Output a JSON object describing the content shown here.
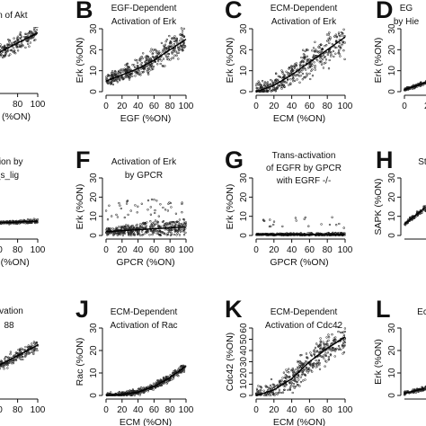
{
  "chart_data": [
    {
      "id": "A",
      "letter": "",
      "title": [
        "ion of Akt"
      ],
      "xlabel": "(%ON)",
      "ylabel": "",
      "type": "scatter",
      "xticks": [
        "",
        "80",
        "100"
      ],
      "yticks": [],
      "xlim": [
        0,
        100
      ],
      "ylim": [
        0,
        30
      ],
      "fit": {
        "x": [
          0,
          20,
          40,
          60,
          80,
          100
        ],
        "y": [
          3,
          8,
          13,
          18,
          23,
          28
        ]
      },
      "spread": 2.5
    },
    {
      "id": "B",
      "letter": "B",
      "title": [
        "EGF-Dependent",
        "Activation of Erk"
      ],
      "xlabel": "EGF (%ON)",
      "ylabel": "Erk (%ON)",
      "type": "scatter",
      "xticks": [
        "0",
        "20",
        "40",
        "60",
        "80",
        "100"
      ],
      "yticks": [
        "0",
        "10",
        "20",
        "30"
      ],
      "xlim": [
        0,
        100
      ],
      "ylim": [
        0,
        30
      ],
      "fit": {
        "x": [
          0,
          20,
          40,
          60,
          80,
          100
        ],
        "y": [
          5,
          8,
          11,
          15,
          20,
          25
        ]
      },
      "spread": 4
    },
    {
      "id": "C",
      "letter": "C",
      "title": [
        "ECM-Dependent",
        "Activation of Erk"
      ],
      "xlabel": "ECM (%ON)",
      "ylabel": "Erk (%ON)",
      "type": "scatter",
      "xticks": [
        "0",
        "20",
        "40",
        "60",
        "80",
        "100"
      ],
      "yticks": [
        "0",
        "10",
        "20",
        "30"
      ],
      "xlim": [
        0,
        100
      ],
      "ylim": [
        0,
        30
      ],
      "fit": {
        "x": [
          0,
          20,
          40,
          60,
          80,
          100
        ],
        "y": [
          0,
          3,
          8,
          14,
          20,
          26
        ]
      },
      "spread": 5
    },
    {
      "id": "D",
      "letter": "D",
      "title": [
        "EG",
        "by Hie"
      ],
      "xlabel": "",
      "ylabel": "Erk (%ON)",
      "type": "scatter",
      "xticks": [
        "0",
        "25"
      ],
      "yticks": [
        "0",
        "10",
        "20",
        "30"
      ],
      "xlim": [
        0,
        100
      ],
      "ylim": [
        0,
        30
      ],
      "fit": {
        "x": [
          0,
          20,
          40
        ],
        "y": [
          1,
          4,
          7
        ]
      },
      "spread": 1
    },
    {
      "id": "E",
      "letter": "",
      "title": [
        "ation by",
        "_s_lig"
      ],
      "xlabel": "lig (%ON)",
      "ylabel": "",
      "type": "scatter",
      "xticks": [
        "60",
        "80",
        "100"
      ],
      "yticks": [],
      "xlim": [
        0,
        100
      ],
      "ylim": [
        0,
        30
      ],
      "fit": {
        "x": [
          0,
          20,
          40,
          60,
          80,
          100
        ],
        "y": [
          5,
          5.5,
          6,
          6.5,
          7,
          7.5
        ]
      },
      "spread": 0.6
    },
    {
      "id": "F",
      "letter": "F",
      "title": [
        "Activation of Erk",
        "by GPCR"
      ],
      "xlabel": "GPCR (%ON)",
      "ylabel": "Erk (%ON)",
      "type": "scatter",
      "xticks": [
        "0",
        "20",
        "40",
        "60",
        "80",
        "100"
      ],
      "yticks": [
        "0",
        "10",
        "20",
        "30"
      ],
      "xlim": [
        0,
        100
      ],
      "ylim": [
        0,
        30
      ],
      "fit": {
        "x": [
          0,
          20,
          40,
          60,
          80,
          100
        ],
        "y": [
          2,
          2.5,
          3,
          3.5,
          4,
          4.5
        ]
      },
      "spread": 3
    },
    {
      "id": "G",
      "letter": "G",
      "title": [
        "Trans-activation",
        "of EGFR by GPCR",
        "with EGRF -/-"
      ],
      "xlabel": "GPCR (%ON)",
      "ylabel": "Erk (%ON)",
      "type": "scatter",
      "xticks": [
        "0",
        "20",
        "40",
        "60",
        "80",
        "100"
      ],
      "yticks": [
        "0",
        "10",
        "20",
        "30"
      ],
      "xlim": [
        0,
        100
      ],
      "ylim": [
        0,
        30
      ],
      "fit": {
        "x": [
          0,
          20,
          40,
          60,
          80,
          100
        ],
        "y": [
          0.5,
          0.5,
          0.5,
          0.5,
          0.5,
          0.5
        ]
      },
      "spread": 0.6
    },
    {
      "id": "H",
      "letter": "H",
      "title": [
        "St"
      ],
      "xlabel": "",
      "ylabel": "SAPK (%ON)",
      "type": "scatter",
      "xticks": [],
      "yticks": [
        "0",
        "10",
        "20",
        "30"
      ],
      "xlim": [
        0,
        100
      ],
      "ylim": [
        0,
        30
      ],
      "fit": {
        "x": [
          0,
          10,
          20
        ],
        "y": [
          6,
          10,
          14
        ]
      },
      "spread": 1.5
    },
    {
      "id": "I",
      "letter": "",
      "title": [
        "tivation",
        "88"
      ],
      "xlabel": "",
      "ylabel": "",
      "type": "scatter",
      "xticks": [
        "60",
        "80",
        "100"
      ],
      "yticks": [],
      "xlim": [
        0,
        100
      ],
      "ylim": [
        0,
        30
      ],
      "fit": {
        "x": [
          0,
          20,
          40,
          60,
          80,
          100
        ],
        "y": [
          2,
          6,
          10,
          14,
          19,
          24
        ]
      },
      "spread": 1.8
    },
    {
      "id": "J",
      "letter": "J",
      "title": [
        "ECM-Dependent",
        "Activation of Rac"
      ],
      "xlabel": "ECM (%ON)",
      "ylabel": "Rac (%ON)",
      "type": "scatter",
      "xticks": [
        "0",
        "20",
        "40",
        "60",
        "80",
        "100"
      ],
      "yticks": [
        "0",
        "10",
        "20",
        "30"
      ],
      "xlim": [
        0,
        100
      ],
      "ylim": [
        0,
        30
      ],
      "fit": {
        "x": [
          0,
          20,
          40,
          60,
          80,
          100
        ],
        "y": [
          0,
          0.5,
          1.5,
          4,
          8,
          13
        ]
      },
      "spread": 1.2
    },
    {
      "id": "K",
      "letter": "K",
      "title": [
        "ECM-Dependent",
        "Activation of Cdc42"
      ],
      "xlabel": "ECM (%ON)",
      "ylabel": "Cdc42 (%ON)",
      "type": "scatter",
      "xticks": [
        "0",
        "20",
        "40",
        "60",
        "80",
        "100"
      ],
      "yticks": [
        "0",
        "10",
        "20",
        "30",
        "40",
        "50",
        "60"
      ],
      "xlim": [
        0,
        100
      ],
      "ylim": [
        0,
        60
      ],
      "fit": {
        "x": [
          0,
          20,
          40,
          60,
          80,
          100
        ],
        "y": [
          0,
          5,
          15,
          30,
          42,
          52
        ]
      },
      "spread": 9
    },
    {
      "id": "L",
      "letter": "L",
      "title": [
        "Ec"
      ],
      "xlabel": "",
      "ylabel": "Erk (%ON)",
      "type": "scatter",
      "xticks": [],
      "yticks": [
        "0",
        "10",
        "20",
        "30"
      ],
      "xlim": [
        0,
        100
      ],
      "ylim": [
        0,
        30
      ],
      "fit": {
        "x": [
          0,
          10,
          20
        ],
        "y": [
          1,
          2,
          3
        ]
      },
      "spread": 1
    }
  ]
}
